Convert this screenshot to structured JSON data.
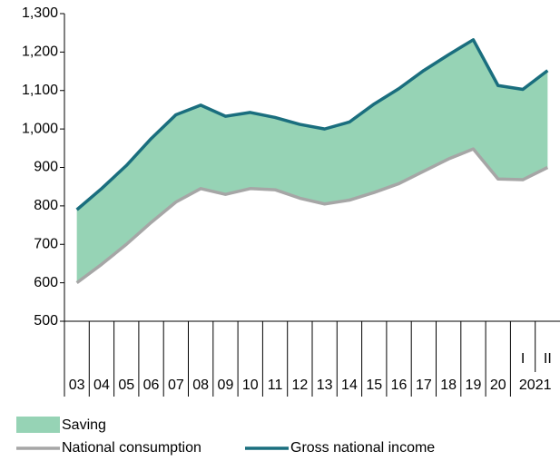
{
  "chart_data": {
    "type": "line",
    "categories": [
      "03",
      "04",
      "05",
      "06",
      "07",
      "08",
      "09",
      "10",
      "11",
      "12",
      "13",
      "14",
      "15",
      "16",
      "17",
      "18",
      "19",
      "20",
      "I",
      "II"
    ],
    "groups": [
      {
        "label": "2021",
        "categories": [
          "I",
          "II"
        ]
      }
    ],
    "area": {
      "name": "Saving",
      "color": "#96d3b5"
    },
    "series": [
      {
        "name": "National consumption",
        "color": "#a6a6a6",
        "values": [
          600,
          648,
          700,
          757,
          810,
          845,
          830,
          845,
          842,
          820,
          805,
          815,
          835,
          858,
          890,
          922,
          948,
          870,
          868,
          900
        ]
      },
      {
        "name": "Gross national income",
        "color": "#1a6e7e",
        "values": [
          790,
          845,
          905,
          975,
          1037,
          1062,
          1033,
          1043,
          1030,
          1012,
          1000,
          1018,
          1065,
          1105,
          1152,
          1193,
          1232,
          1113,
          1103,
          1152
        ]
      }
    ],
    "ylim": [
      500,
      1300
    ],
    "yticks": [
      500,
      600,
      700,
      800,
      900,
      {
        "value": 1000,
        "label": "1,000"
      },
      {
        "value": 1100,
        "label": "1,100"
      },
      {
        "value": 1200,
        "label": "1,200"
      },
      {
        "value": 1300,
        "label": "1,300"
      }
    ]
  }
}
